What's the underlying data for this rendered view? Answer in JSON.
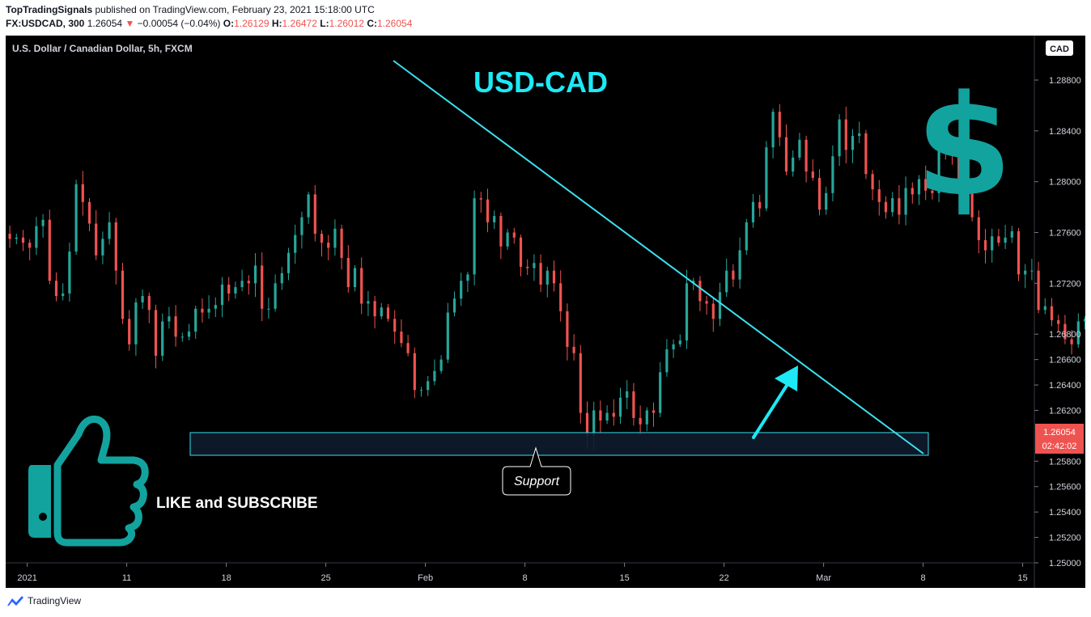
{
  "header": {
    "publisher": "TopTradingSignals",
    "published_text": "published on TradingView.com, February 23, 2021 15:18:00 UTC",
    "symbol": "FX:USDCAD, 300",
    "last": "1.26054",
    "change_arrow": "▼",
    "change": "−0.00054 (−0.04%)",
    "o_label": "O:",
    "o_value": "1.26129",
    "h_label": "H:",
    "h_value": "1.26472",
    "l_label": "L:",
    "l_value": "1.26012",
    "c_label": "C:",
    "c_value": "1.26054"
  },
  "footer": {
    "brand": "TradingView",
    "brand_icon": "tradingview-logo-icon"
  },
  "colors": {
    "background": "#000000",
    "up": "#26a69a",
    "down": "#ef5350",
    "trendline": "#3ce0f0",
    "title": "#1de9f6",
    "icons": "#12a39f"
  },
  "chart_data": {
    "type": "candlestick",
    "title": "USD-CAD",
    "legend": "U.S. Dollar / Canadian Dollar, 5h, FXCM",
    "currency_badge": "CAD",
    "price_tag": "1.26054",
    "countdown": "02:42:02",
    "y_ticks": [
      "1.28800",
      "1.28400",
      "1.28000",
      "1.27600",
      "1.27200",
      "1.26800",
      "1.26600",
      "1.26400",
      "1.26200",
      "1.25800",
      "1.25600",
      "1.25400",
      "1.25200",
      "1.25000"
    ],
    "y_top_partial": "1",
    "x_ticks": [
      {
        "label": "2021",
        "slot": 3
      },
      {
        "label": "11",
        "slot": 18
      },
      {
        "label": "18",
        "slot": 33
      },
      {
        "label": "25",
        "slot": 48
      },
      {
        "label": "Feb",
        "slot": 63
      },
      {
        "label": "8",
        "slot": 78
      },
      {
        "label": "15",
        "slot": 93
      },
      {
        "label": "22",
        "slot": 108
      },
      {
        "label": "Mar",
        "slot": 123
      },
      {
        "label": "8",
        "slot": 138
      },
      {
        "label": "15",
        "slot": 153
      }
    ],
    "ylim": [
      1.25,
      1.2915
    ],
    "close": [
      1.2755,
      1.2756,
      1.2752,
      1.2748,
      1.2765,
      1.277,
      1.2722,
      1.271,
      1.2712,
      1.2745,
      1.2798,
      1.2784,
      1.2767,
      1.2742,
      1.2755,
      1.2768,
      1.273,
      1.2692,
      1.2672,
      1.2705,
      1.271,
      1.2699,
      1.2663,
      1.269,
      1.2694,
      1.2678,
      1.2678,
      1.2682,
      1.27,
      1.2697,
      1.27,
      1.2703,
      1.2719,
      1.2712,
      1.2717,
      1.2722,
      1.272,
      1.2734,
      1.27,
      1.27,
      1.272,
      1.2728,
      1.2744,
      1.2758,
      1.2772,
      1.279,
      1.2759,
      1.2752,
      1.2748,
      1.2763,
      1.274,
      1.2717,
      1.2732,
      1.2704,
      1.2706,
      1.2694,
      1.2701,
      1.2692,
      1.2682,
      1.2673,
      1.2665,
      1.2636,
      1.2636,
      1.2643,
      1.2651,
      1.266,
      1.2697,
      1.2708,
      1.2722,
      1.2727,
      1.2787,
      1.2786,
      1.2768,
      1.2773,
      1.2749,
      1.276,
      1.2756,
      1.2733,
      1.2732,
      1.2736,
      1.2719,
      1.273,
      1.272,
      1.2698,
      1.267,
      1.2665,
      1.2618,
      1.26,
      1.262,
      1.2612,
      1.2618,
      1.2615,
      1.263,
      1.2635,
      1.2614,
      1.2609,
      1.262,
      1.2618,
      1.265,
      1.2668,
      1.2672,
      1.2675,
      1.272,
      1.2722,
      1.2706,
      1.2704,
      1.2692,
      1.2713,
      1.273,
      1.2723,
      1.2746,
      1.2768,
      1.2784,
      1.2779,
      1.2827,
      1.2855,
      1.2835,
      1.2808,
      1.2819,
      1.2833,
      1.2808,
      1.2803,
      1.2778,
      1.2791,
      1.282,
      1.2849,
      1.2825,
      1.2836,
      1.2838,
      1.2806,
      1.2794,
      1.2784,
      1.2776,
      1.2787,
      1.2774,
      1.2795,
      1.279,
      1.2802,
      1.2793,
      1.2791,
      1.2834,
      1.2823,
      1.2822,
      1.2799,
      1.28,
      1.2772,
      1.2754,
      1.2746,
      1.2757,
      1.2752,
      1.2756,
      1.2761,
      1.2727,
      1.273,
      1.273,
      1.2699,
      1.2702,
      1.2691,
      1.2688,
      1.2676,
      1.2672,
      1.269,
      1.2692,
      1.2691,
      1.2684,
      1.268,
      1.2664,
      1.2693,
      1.2692,
      1.27,
      1.2717,
      1.2718,
      1.272,
      1.2691,
      1.2681,
      1.2684,
      1.2659,
      1.2641,
      1.2643,
      1.2637,
      1.2641,
      1.2618,
      1.2652,
      1.266,
      1.2698,
      1.2681,
      1.2689,
      1.2706,
      1.2693,
      1.2694,
      1.2705,
      1.2695,
      1.2681,
      1.2693,
      1.2672,
      1.2679,
      1.2661,
      1.2679,
      1.271,
      1.2684,
      1.2676,
      1.2617,
      1.2617,
      1.2611,
      1.2611,
      1.2608,
      1.2621,
      1.264,
      1.2631,
      1.2617,
      1.2614,
      1.2603,
      1.2598,
      1.2614,
      1.261,
      1.2607,
      1.2625,
      1.2605
    ]
  }
}
